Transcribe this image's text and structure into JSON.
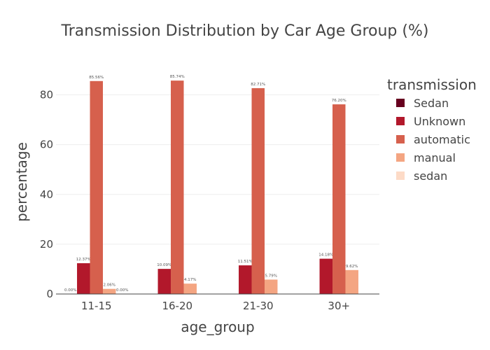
{
  "chart_data": {
    "type": "bar",
    "title": "Transmission Distribution by Car Age Group (%)",
    "xlabel": "age_group",
    "ylabel": "percentage",
    "categories": [
      "11-15",
      "16-20",
      "21-30",
      "30+"
    ],
    "ylim": [
      0,
      90
    ],
    "yticks": [
      0,
      20,
      40,
      60,
      80
    ],
    "grid": true,
    "legend": {
      "title": "transmission",
      "position": "right"
    },
    "series": [
      {
        "name": "Sedan",
        "color": "#67001f",
        "values": [
          0,
          null,
          null,
          null
        ],
        "labels": [
          "0.00%",
          "",
          "",
          ""
        ]
      },
      {
        "name": "Unknown",
        "color": "#b2182b",
        "values": [
          12.37,
          10.09,
          11.51,
          14.18
        ],
        "labels": [
          "12.37%",
          "10.09%",
          "11.51%",
          "14.18%"
        ]
      },
      {
        "name": "automatic",
        "color": "#d6604d",
        "values": [
          85.56,
          85.74,
          82.71,
          76.2
        ],
        "labels": [
          "85.56%",
          "85.74%",
          "82.71%",
          "76.20%"
        ]
      },
      {
        "name": "manual",
        "color": "#f4a582",
        "values": [
          2.06,
          4.17,
          5.79,
          9.62
        ],
        "labels": [
          "2.06%",
          "4.17%",
          "5.79%",
          "9.62%"
        ]
      },
      {
        "name": "sedan",
        "color": "#fddbc7",
        "values": [
          0,
          null,
          null,
          null
        ],
        "labels": [
          "0.00%",
          "",
          "",
          ""
        ]
      }
    ]
  }
}
